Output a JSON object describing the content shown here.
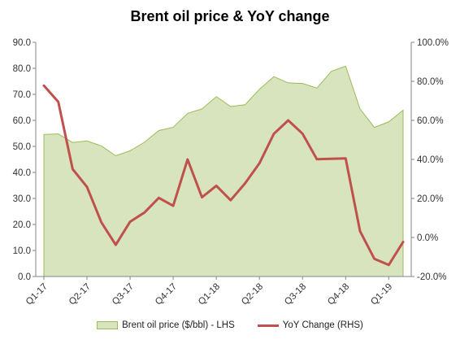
{
  "chart_data": {
    "type": "area",
    "title": "Brent oil price & YoY change",
    "x_labels": [
      "Q1-17",
      "Q2-17",
      "Q3-17",
      "Q4-17",
      "Q1-18",
      "Q2-18",
      "Q3-18",
      "Q4-18",
      "Q1-19"
    ],
    "series": [
      {
        "name": "Brent oil price ($/bbl) - LHS",
        "type": "area",
        "axis": "left",
        "color": "#9bbb59",
        "fill": "#d7e4bd",
        "values": [
          54.6,
          54.8,
          51.5,
          52.1,
          50.2,
          46.4,
          48.3,
          51.6,
          56.1,
          57.3,
          62.7,
          64.4,
          69.1,
          65.3,
          66.0,
          71.9,
          76.8,
          74.4,
          74.2,
          72.4,
          78.8,
          80.8,
          64.4,
          57.3,
          59.4,
          63.9
        ]
      },
      {
        "name": "YoY Change (RHS)",
        "type": "line",
        "axis": "right",
        "color": "#c0504d",
        "values": [
          77.8,
          69.5,
          35.0,
          25.9,
          7.8,
          -3.8,
          8.1,
          12.8,
          20.3,
          16.2,
          40.0,
          20.6,
          26.5,
          19.1,
          27.7,
          38.0,
          53.1,
          60.0,
          53.2,
          40.1,
          40.3,
          40.5,
          3.2,
          -10.9,
          -14.1,
          -2.3
        ]
      }
    ],
    "y_left": {
      "min": 0,
      "max": 90,
      "step": 10,
      "tick_labels": [
        "0.0",
        "10.0",
        "20.0",
        "30.0",
        "40.0",
        "50.0",
        "60.0",
        "70.0",
        "80.0",
        "90.0"
      ]
    },
    "y_right": {
      "min": -20,
      "max": 100,
      "step": 20,
      "tick_labels": [
        "-20.0%",
        "0.0%",
        "20.0%",
        "40.0%",
        "60.0%",
        "80.0%",
        "100.0%"
      ]
    },
    "legend_position": "bottom",
    "grid": false
  }
}
